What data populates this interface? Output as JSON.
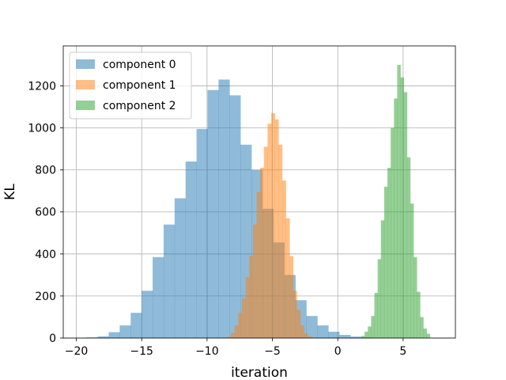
{
  "chart_data": {
    "type": "histogram",
    "title": "",
    "xlabel": "iteration",
    "ylabel": "KL",
    "xlim": [
      -21.0,
      9.0
    ],
    "ylim": [
      0,
      1390
    ],
    "xticks": [
      -20,
      -15,
      -10,
      -5,
      0,
      5
    ],
    "yticks": [
      0,
      200,
      400,
      600,
      800,
      1000,
      1200
    ],
    "grid": true,
    "legend_position": "top-left",
    "series": [
      {
        "name": "component 0",
        "color": "#1f77b4",
        "alpha": 0.5,
        "bin_start": -19.2,
        "bin_width": 0.84,
        "counts": [
          3,
          8,
          28,
          60,
          120,
          225,
          385,
          540,
          665,
          840,
          995,
          1180,
          1230,
          1155,
          920,
          800,
          615,
          455,
          300,
          180,
          105,
          60,
          30,
          15,
          7,
          3,
          1
        ]
      },
      {
        "name": "component 1",
        "color": "#ff7f0e",
        "alpha": 0.5,
        "bin_start": -8.45,
        "bin_width": 0.28,
        "counts": [
          5,
          25,
          60,
          120,
          190,
          290,
          390,
          540,
          695,
          810,
          910,
          1020,
          1070,
          1040,
          920,
          750,
          570,
          390,
          225,
          135,
          60,
          22,
          8
        ]
      },
      {
        "name": "component 2",
        "color": "#2ca02c",
        "alpha": 0.5,
        "bin_start": 1.8,
        "bin_width": 0.25,
        "counts": [
          10,
          30,
          55,
          105,
          215,
          375,
          560,
          720,
          810,
          1000,
          1140,
          1300,
          1240,
          1170,
          860,
          640,
          385,
          220,
          100,
          45,
          20
        ]
      }
    ]
  }
}
